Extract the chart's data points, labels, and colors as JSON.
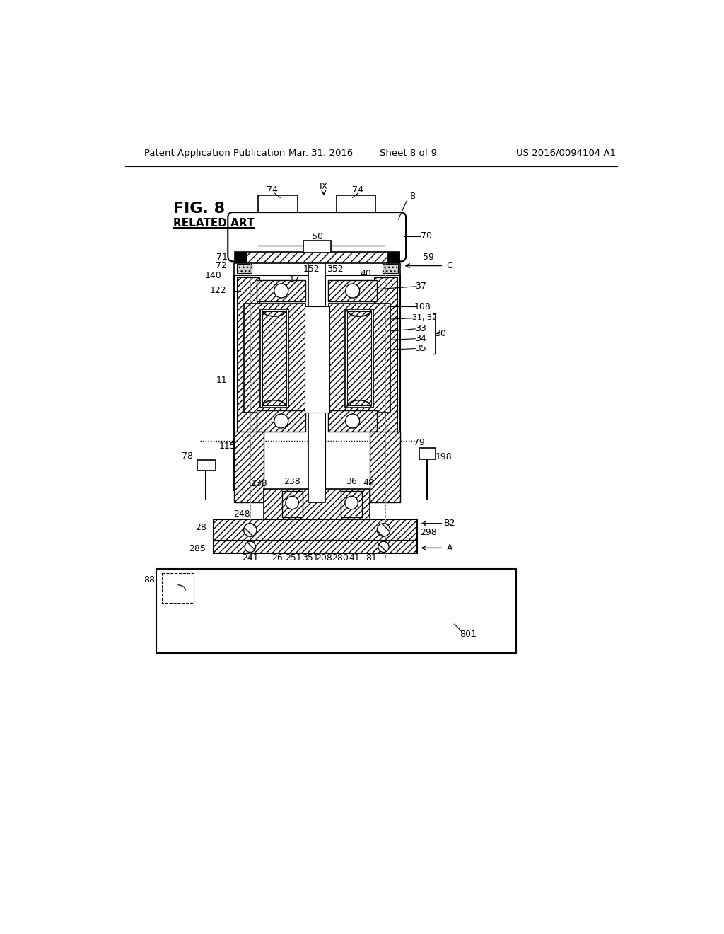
{
  "title": "Patent Application Publication",
  "date": "Mar. 31, 2016",
  "sheet": "Sheet 8 of 9",
  "patent_num": "US 2016/0094104 A1",
  "fig_label": "FIG. 8",
  "fig_sublabel": "RELATED ART",
  "bg_color": "#ffffff",
  "line_color": "#000000"
}
